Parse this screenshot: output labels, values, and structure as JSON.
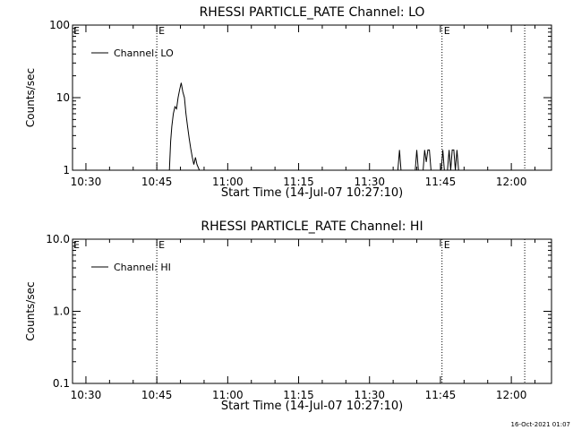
{
  "footer": {
    "timestamp": "16-Oct-2021 01:07"
  },
  "chart_data": [
    {
      "type": "line",
      "title": "RHESSI PARTICLE_RATE Channel: LO",
      "xlabel": "Start Time (14-Jul-07 10:27:10)",
      "ylabel": "Counts/sec",
      "yscale": "log",
      "xlim": [
        "10:27:10",
        "12:08:30"
      ],
      "ylim": [
        1,
        100
      ],
      "x_ticks": [
        "10:30",
        "10:45",
        "11:00",
        "11:15",
        "11:30",
        "11:45",
        "12:00"
      ],
      "y_ticks": [
        "1",
        "10",
        "100"
      ],
      "legend": {
        "position": "top-left",
        "entries": [
          "Channel: LO"
        ]
      },
      "event_markers": [
        {
          "time": "10:45:00",
          "label": "E"
        },
        {
          "time": "11:45:20",
          "label": "E"
        },
        {
          "time": "12:02:50",
          "label": ""
        }
      ],
      "series": [
        {
          "name": "Channel: LO",
          "x": [
            "10:47:40",
            "10:47:55",
            "10:48:10",
            "10:48:30",
            "10:48:50",
            "10:49:10",
            "10:49:30",
            "10:49:50",
            "10:50:10",
            "10:50:30",
            "10:50:50",
            "10:51:10",
            "10:51:30",
            "10:51:50",
            "10:52:10",
            "10:52:30",
            "10:52:50",
            "10:53:10",
            "10:53:30",
            "10:54:00",
            "11:36:00",
            "11:36:20",
            "11:36:40",
            "11:39:40",
            "11:40:00",
            "11:40:20",
            "11:41:20",
            "11:41:40",
            "11:42:00",
            "11:42:20",
            "11:42:40",
            "11:43:00",
            "11:45:10",
            "11:45:30",
            "11:45:50",
            "11:46:30",
            "11:46:50",
            "11:47:10",
            "11:47:30",
            "11:47:50",
            "11:48:10",
            "11:48:30",
            "11:48:50",
            "11:49:10"
          ],
          "values": [
            1,
            2.5,
            4,
            6,
            7.5,
            7,
            10,
            13,
            16,
            12,
            10,
            6,
            4,
            2.8,
            2,
            1.5,
            1.2,
            1.5,
            1.2,
            1,
            1,
            1.9,
            1,
            1,
            1.9,
            1,
            1,
            1.9,
            1.3,
            1.9,
            1.9,
            1,
            1,
            1.9,
            1,
            1,
            1.9,
            1,
            1.9,
            1.9,
            1,
            1.9,
            1,
            1
          ]
        }
      ]
    },
    {
      "type": "line",
      "title": "RHESSI PARTICLE_RATE Channel: HI",
      "xlabel": "Start Time (14-Jul-07 10:27:10)",
      "ylabel": "Counts/sec",
      "yscale": "log",
      "xlim": [
        "10:27:10",
        "12:08:30"
      ],
      "ylim": [
        0.1,
        10
      ],
      "x_ticks": [
        "10:30",
        "10:45",
        "11:00",
        "11:15",
        "11:30",
        "11:45",
        "12:00"
      ],
      "y_ticks": [
        "0.1",
        "1.0",
        "10.0"
      ],
      "legend": {
        "position": "top-left",
        "entries": [
          "Channel: HI"
        ]
      },
      "event_markers": [
        {
          "time": "10:45:00",
          "label": "E"
        },
        {
          "time": "11:45:20",
          "label": "E"
        },
        {
          "time": "12:02:50",
          "label": ""
        }
      ],
      "series": [
        {
          "name": "Channel: HI",
          "x": [],
          "values": []
        }
      ]
    }
  ]
}
